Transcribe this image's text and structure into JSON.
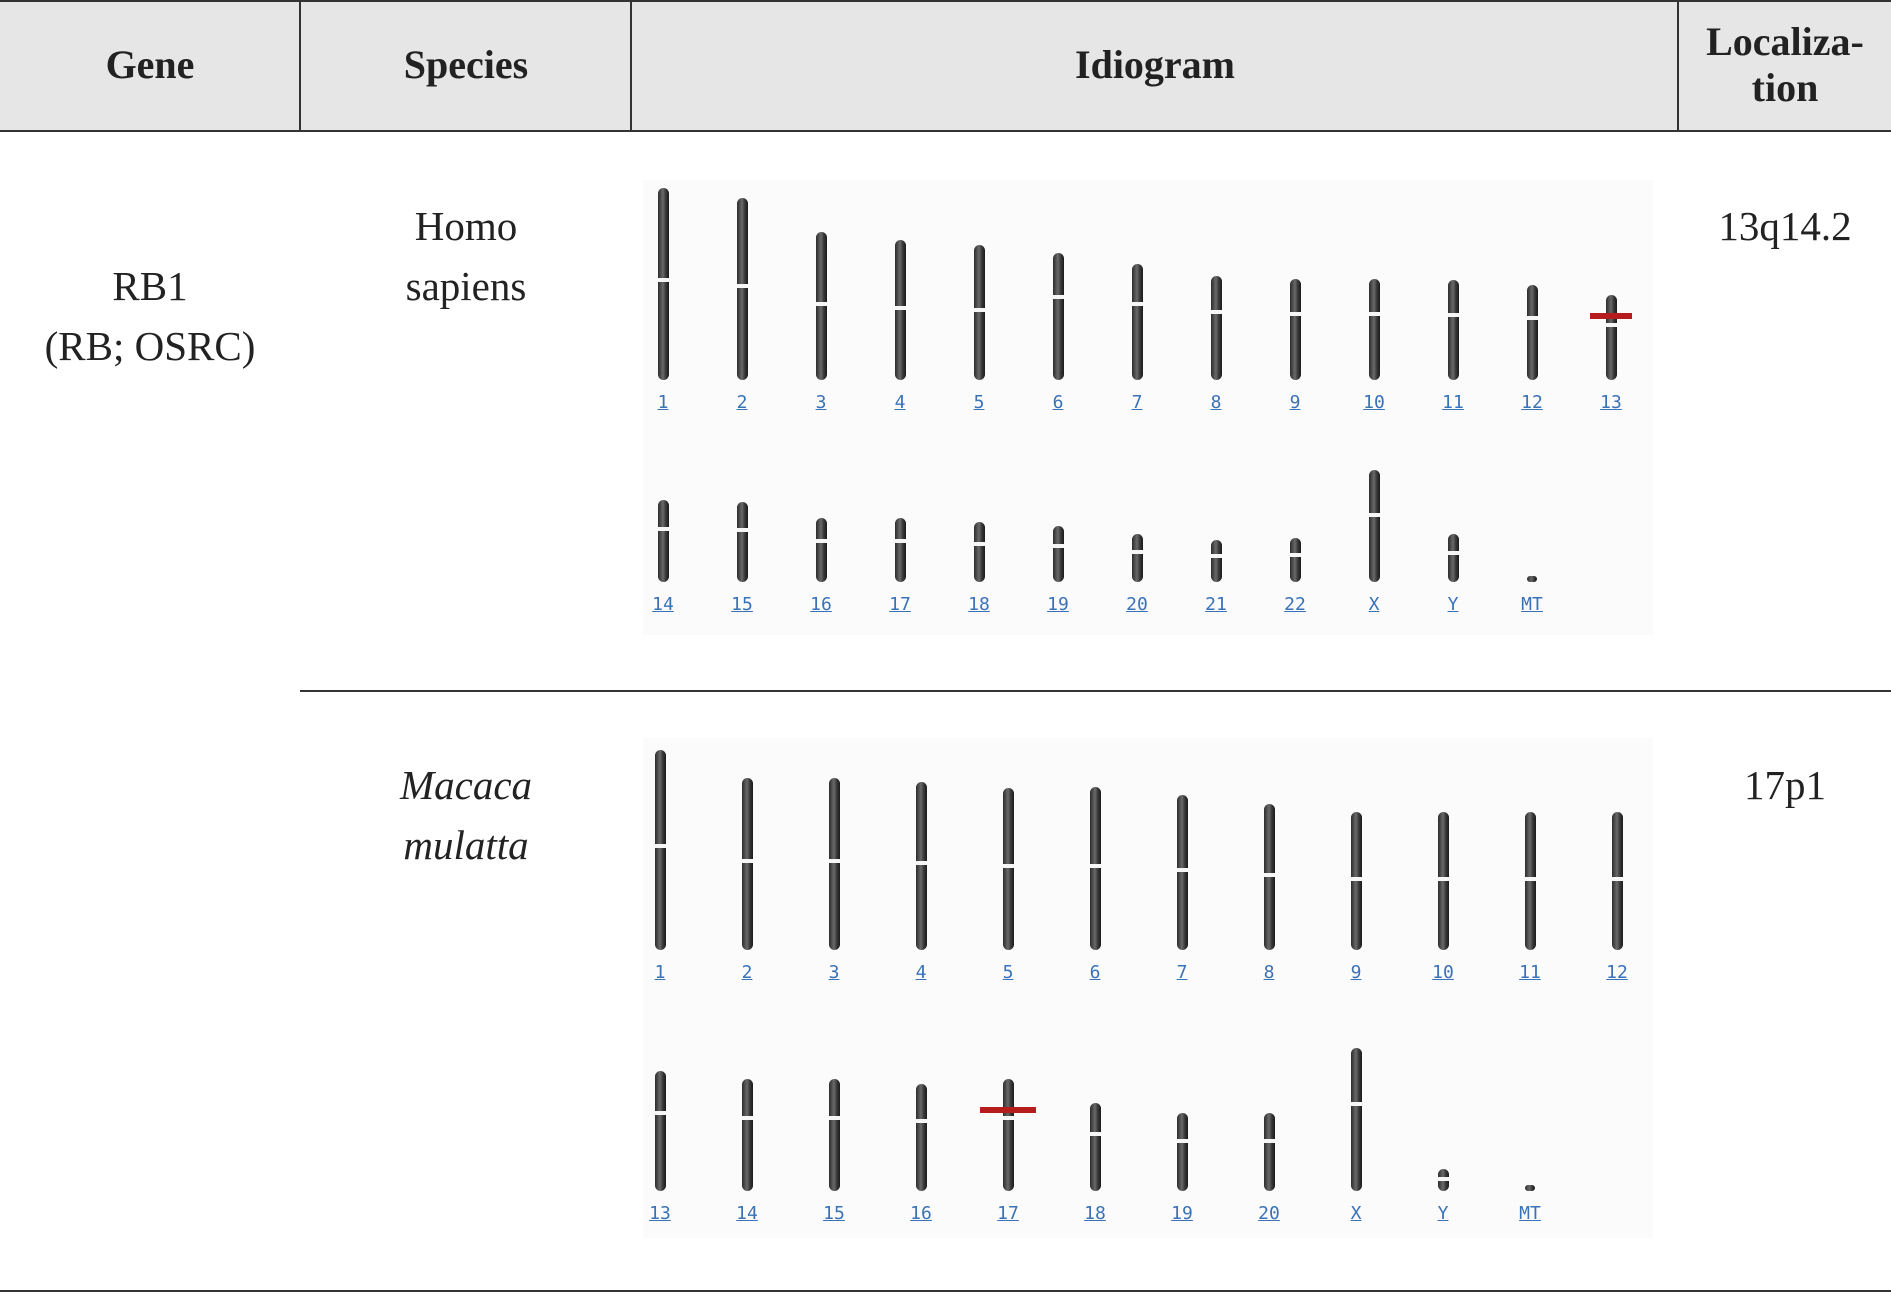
{
  "header": {
    "gene": "Gene",
    "species": "Species",
    "idiogram": "Idiogram",
    "localization": "Localiza-\ntion"
  },
  "gene": {
    "name": "RB1",
    "aliases": "(RB; OSRC)"
  },
  "rows": [
    {
      "species": "Homo\nsapiens",
      "localization": "13q14.2",
      "marked_chromosome": "13",
      "row1_labels": [
        "1",
        "2",
        "3",
        "4",
        "5",
        "6",
        "7",
        "8",
        "9",
        "10",
        "11",
        "12",
        "13"
      ],
      "row2_labels": [
        "14",
        "15",
        "16",
        "17",
        "18",
        "19",
        "20",
        "21",
        "22",
        "X",
        "Y",
        "MT"
      ]
    },
    {
      "species": "Macaca\nmulatta",
      "localization": "17p1",
      "marked_chromosome": "17",
      "row1_labels": [
        "1",
        "2",
        "3",
        "4",
        "5",
        "6",
        "7",
        "8",
        "9",
        "10",
        "11",
        "12"
      ],
      "row2_labels": [
        "13",
        "14",
        "15",
        "16",
        "17",
        "18",
        "19",
        "20",
        "X",
        "Y",
        "MT"
      ]
    }
  ],
  "colors": {
    "header_bg": "#e6e6e6",
    "rule": "#333333",
    "chromosome": "#3a3a3a",
    "label_link": "#3a72b8",
    "marker": "#b71c1c"
  }
}
